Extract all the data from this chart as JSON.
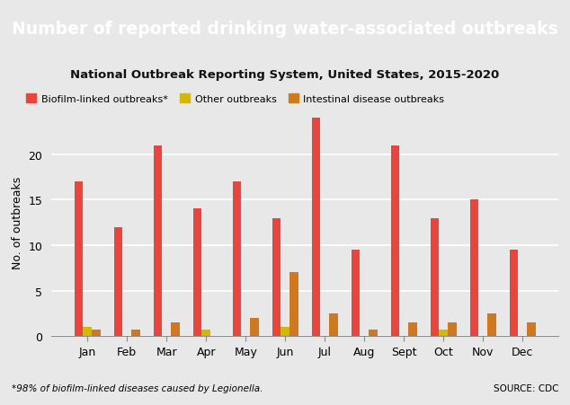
{
  "title": "Number of reported drinking water-associated outbreaks",
  "subtitle": "National Outbreak Reporting System, United States, 2015-2020",
  "footnote": "*98% of biofilm-linked diseases caused by Legionella.",
  "source": "SOURCE: CDC",
  "ylabel": "No. of outbreaks",
  "months": [
    "Jan",
    "Feb",
    "Mar",
    "Apr",
    "May",
    "Jun",
    "Jul",
    "Aug",
    "Sept",
    "Oct",
    "Nov",
    "Dec"
  ],
  "biofilm": [
    17,
    12,
    21,
    14,
    17,
    13,
    24,
    9.5,
    21,
    13,
    15,
    9.5
  ],
  "other": [
    1,
    0,
    0,
    0.7,
    0,
    1,
    0,
    0,
    0,
    0.7,
    0,
    0
  ],
  "intestinal": [
    0.7,
    0.7,
    1.5,
    0,
    2,
    7,
    2.5,
    0.7,
    1.5,
    1.5,
    2.5,
    1.5
  ],
  "biofilm_color": "#E8453C",
  "other_color": "#D4B800",
  "intestinal_color": "#D07820",
  "title_bg": "#111111",
  "title_color": "#FFFFFF",
  "chart_bg": "#E8E8E8",
  "subtitle_color": "#111111",
  "ylim": [
    0,
    25
  ],
  "yticks": [
    0,
    5,
    10,
    15,
    20
  ],
  "legend_labels": [
    "Biofilm-linked outbreaks*",
    "Other outbreaks",
    "Intestinal disease outbreaks"
  ],
  "bar_width": 0.22
}
